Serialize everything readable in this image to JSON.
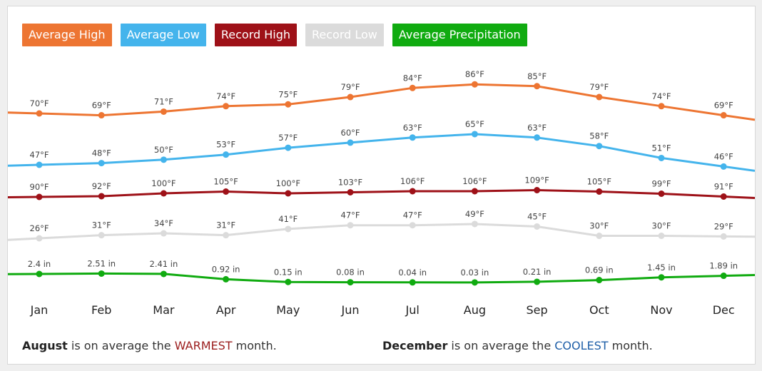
{
  "legend": [
    {
      "label": "Average High",
      "color": "#ed7532"
    },
    {
      "label": "Average Low",
      "color": "#44b4ec"
    },
    {
      "label": "Record High",
      "color": "#9e1118"
    },
    {
      "label": "Record Low",
      "color": "#dbdbdb"
    },
    {
      "label": "Average Precipitation",
      "color": "#10ab10"
    }
  ],
  "chart_data": {
    "type": "line",
    "categories": [
      "Jan",
      "Feb",
      "Mar",
      "Apr",
      "May",
      "Jun",
      "Jul",
      "Aug",
      "Sep",
      "Oct",
      "Nov",
      "Dec"
    ],
    "series": [
      {
        "name": "Average High",
        "color": "#ed7532",
        "unit": "°F",
        "values": [
          70,
          69,
          71,
          74,
          75,
          79,
          84,
          86,
          85,
          79,
          74,
          69
        ],
        "labels": [
          "70°F",
          "69°F",
          "71°F",
          "74°F",
          "75°F",
          "79°F",
          "84°F",
          "86°F",
          "85°F",
          "79°F",
          "74°F",
          "69°F"
        ]
      },
      {
        "name": "Average Low",
        "color": "#44b4ec",
        "unit": "°F",
        "values": [
          47,
          48,
          50,
          53,
          57,
          60,
          63,
          65,
          63,
          58,
          51,
          46
        ],
        "labels": [
          "47°F",
          "48°F",
          "50°F",
          "53°F",
          "57°F",
          "60°F",
          "63°F",
          "65°F",
          "63°F",
          "58°F",
          "51°F",
          "46°F"
        ]
      },
      {
        "name": "Record High",
        "color": "#9e1118",
        "unit": "°F",
        "values": [
          90,
          92,
          100,
          105,
          100,
          103,
          106,
          106,
          109,
          105,
          99,
          91
        ],
        "labels": [
          "90°F",
          "92°F",
          "100°F",
          "105°F",
          "100°F",
          "103°F",
          "106°F",
          "106°F",
          "109°F",
          "105°F",
          "99°F",
          "91°F"
        ]
      },
      {
        "name": "Record Low",
        "color": "#dbdbdb",
        "unit": "°F",
        "values": [
          26,
          31,
          34,
          31,
          41,
          47,
          47,
          49,
          45,
          30,
          30,
          29
        ],
        "labels": [
          "26°F",
          "31°F",
          "34°F",
          "31°F",
          "41°F",
          "47°F",
          "47°F",
          "49°F",
          "45°F",
          "30°F",
          "30°F",
          "29°F"
        ]
      },
      {
        "name": "Average Precipitation",
        "color": "#10ab10",
        "unit": "in",
        "values": [
          2.4,
          2.51,
          2.41,
          0.92,
          0.15,
          0.08,
          0.04,
          0.03,
          0.21,
          0.69,
          1.45,
          1.89
        ],
        "labels": [
          "2.4 in",
          "2.51 in",
          "2.41 in",
          "0.92 in",
          "0.15 in",
          "0.08 in",
          "0.04 in",
          "0.03 in",
          "0.21 in",
          "0.69 in",
          "1.45 in",
          "1.89 in"
        ]
      }
    ],
    "grid": false,
    "legend_position": "top-left"
  },
  "footer": {
    "warm_month": "August",
    "warm_text": " is on average the ",
    "warm_word": "WARMEST",
    "warm_tail": " month.",
    "cool_month": "December",
    "cool_text": " is on average the ",
    "cool_word": "COOLEST",
    "cool_tail": " month."
  }
}
